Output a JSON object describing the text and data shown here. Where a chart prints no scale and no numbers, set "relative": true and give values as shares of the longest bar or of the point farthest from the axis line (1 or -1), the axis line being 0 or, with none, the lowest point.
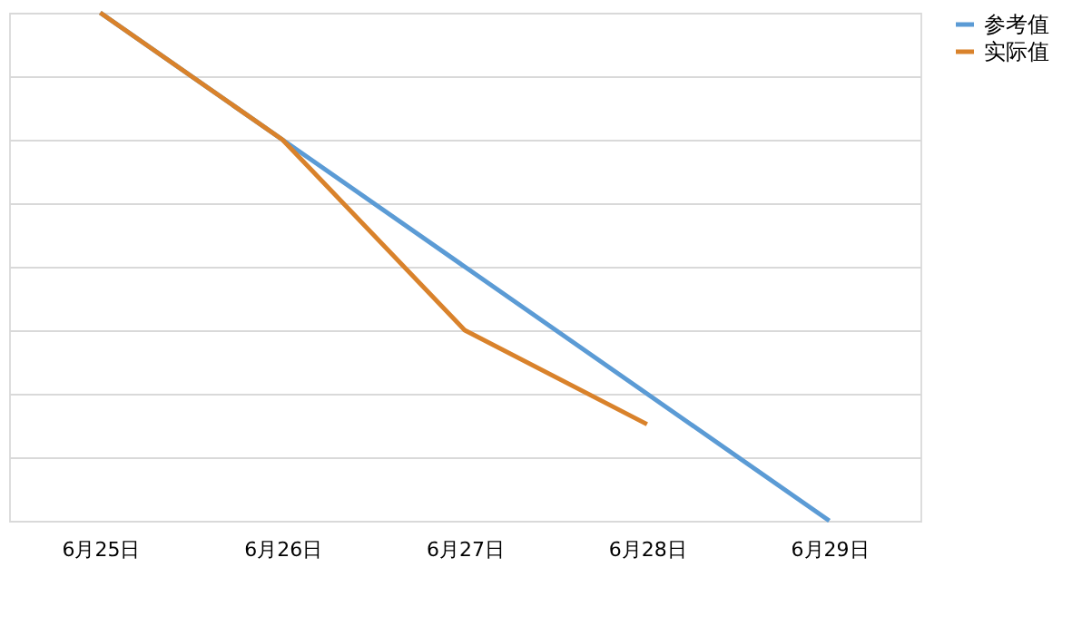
{
  "chart_data": {
    "type": "line",
    "relative": true,
    "categories": [
      "6月25日",
      "6月26日",
      "6月27日",
      "6月28日",
      "6月29日"
    ],
    "series": [
      {
        "name": "参考值",
        "color": "#5b9bd5",
        "values": [
          1,
          0.75,
          0.5,
          0.25,
          0
        ]
      },
      {
        "name": "实际值",
        "color": "#d9822b",
        "values": [
          1,
          0.75,
          0.375,
          0.19,
          null
        ]
      }
    ],
    "grid": "y",
    "legend": "right",
    "marker": "none",
    "line_style": "solid"
  }
}
